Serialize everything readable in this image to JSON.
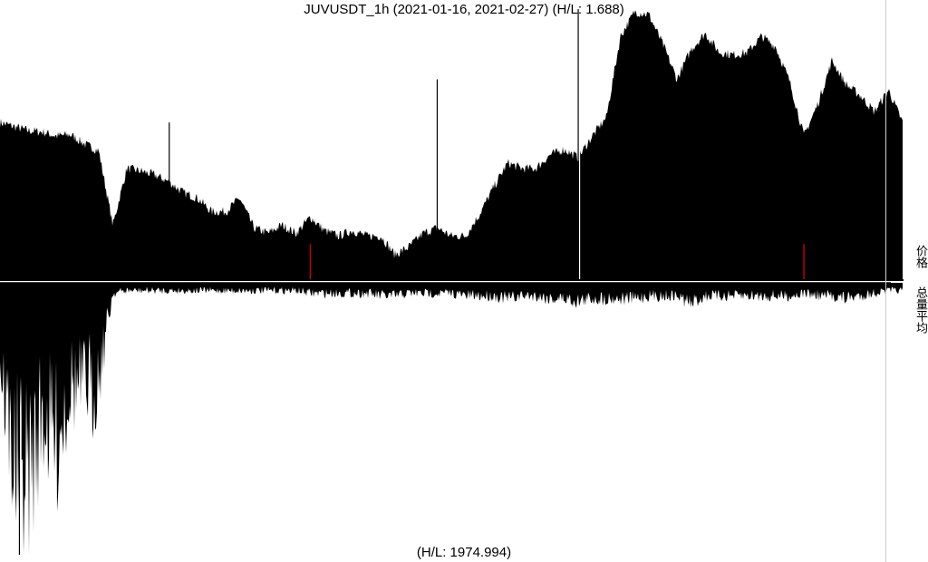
{
  "title": "JUVUSDT_1h (2021-01-16, 2021-02-27) (H/L: 1.688)",
  "footer": "(H/L: 1974.994)",
  "panels": {
    "price_label": "价格",
    "volume_label": "总量平均"
  },
  "colors": {
    "bars": "#000000",
    "highlight": "#cc0000",
    "separator": "#ffffff",
    "right_rule": "#cccccc"
  },
  "chart_data": {
    "type": "area",
    "symbol": "JUVUSDT",
    "interval": "1h",
    "date_range": [
      "2021-01-16",
      "2021-02-27"
    ],
    "series": [
      {
        "name": "价格",
        "ratio_high_low": 1.688,
        "values": [
          0.58,
          0.565,
          0.55,
          0.545,
          0.53,
          0.535,
          0.5,
          0.475,
          0.2,
          0.41,
          0.4,
          0.385,
          0.36,
          0.32,
          0.3,
          0.25,
          0.25,
          0.3,
          0.19,
          0.17,
          0.2,
          0.17,
          0.23,
          0.18,
          0.16,
          0.18,
          0.16,
          0.16,
          0.09,
          0.12,
          0.17,
          0.19,
          0.16,
          0.16,
          0.24,
          0.34,
          0.43,
          0.41,
          0.41,
          0.46,
          0.48,
          0.45,
          0.53,
          0.6,
          0.9,
          0.99,
          0.98,
          0.87,
          0.74,
          0.85,
          0.91,
          0.84,
          0.83,
          0.84,
          0.9,
          0.86,
          0.73,
          0.53,
          0.65,
          0.81,
          0.72,
          0.68,
          0.62,
          0.7,
          0.58
        ],
        "spikes": [
          {
            "index": 12,
            "value": 0.58
          },
          {
            "index": 31,
            "value": 0.74
          },
          {
            "index": 41,
            "value": 1.0
          },
          {
            "index": 57,
            "value": 0.3
          }
        ],
        "highlighted_indices": [
          22,
          57
        ]
      },
      {
        "name": "总量平均",
        "ratio_high_low": 1974.994,
        "values": [
          0.4,
          0.9,
          1.0,
          0.65,
          0.8,
          0.5,
          0.55,
          0.35,
          0.04,
          0.03,
          0.03,
          0.03,
          0.03,
          0.03,
          0.03,
          0.03,
          0.03,
          0.03,
          0.03,
          0.03,
          0.03,
          0.03,
          0.04,
          0.04,
          0.04,
          0.04,
          0.04,
          0.05,
          0.05,
          0.04,
          0.04,
          0.04,
          0.04,
          0.05,
          0.05,
          0.05,
          0.06,
          0.05,
          0.05,
          0.06,
          0.06,
          0.07,
          0.06,
          0.06,
          0.06,
          0.06,
          0.05,
          0.05,
          0.05,
          0.08,
          0.05,
          0.05,
          0.05,
          0.05,
          0.05,
          0.05,
          0.05,
          0.04,
          0.05,
          0.05,
          0.06,
          0.05,
          0.04,
          0.03,
          0.03
        ],
        "spikes": [
          {
            "index": 1,
            "value": 1.0
          },
          {
            "index": 3,
            "value": 0.65
          },
          {
            "index": 5,
            "value": 0.55
          }
        ]
      }
    ]
  }
}
